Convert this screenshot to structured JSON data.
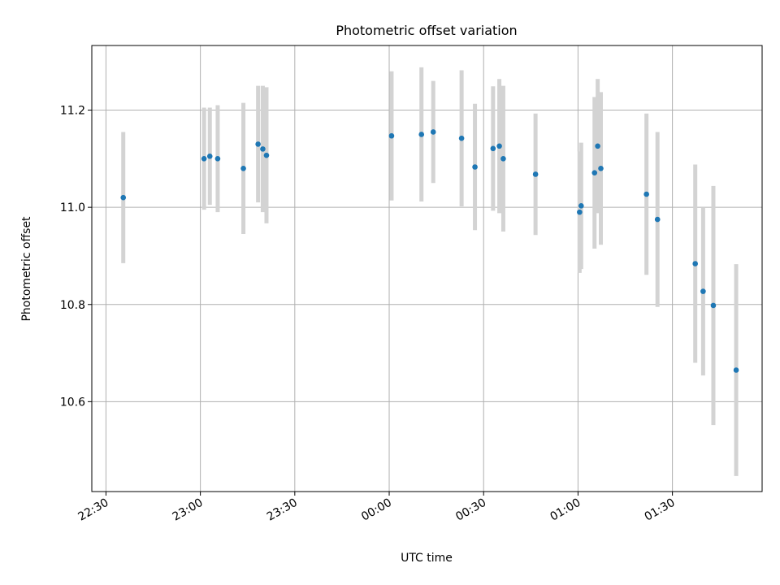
{
  "chart_data": {
    "type": "scatter",
    "title": "Photometric offset variation",
    "xlabel": "UTC time",
    "ylabel": "Photometric offset",
    "x_axis": "time (HH:MM, UTC)",
    "xlim": [
      "22:25:30",
      "01:58:30"
    ],
    "ylim": [
      10.415,
      11.333
    ],
    "x_ticks": [
      "22:30",
      "23:00",
      "23:30",
      "00:00",
      "00:30",
      "01:00",
      "01:30"
    ],
    "y_ticks": [
      10.6,
      10.8,
      11.0,
      11.2
    ],
    "y_tick_labels": [
      "10.6",
      "10.8",
      "11.0",
      "11.2"
    ],
    "grid": true,
    "legend": "none",
    "colors": {
      "point": "#1f77b4",
      "errorbar": "#d3d3d3",
      "grid": "#b0b0b0"
    },
    "series": [
      {
        "points": [
          {
            "t": "22:35:30",
            "y": 11.02,
            "yerr": 0.135
          },
          {
            "t": "23:01:10",
            "y": 11.1,
            "yerr": 0.105
          },
          {
            "t": "23:03:00",
            "y": 11.105,
            "yerr": 0.1
          },
          {
            "t": "23:05:30",
            "y": 11.1,
            "yerr": 0.11
          },
          {
            "t": "23:13:40",
            "y": 11.08,
            "yerr": 0.135
          },
          {
            "t": "23:18:20",
            "y": 11.13,
            "yerr": 0.12
          },
          {
            "t": "23:19:50",
            "y": 11.12,
            "yerr": 0.13
          },
          {
            "t": "23:21:00",
            "y": 11.107,
            "yerr": 0.14
          },
          {
            "t": "00:00:45",
            "y": 11.147,
            "yerr": 0.133
          },
          {
            "t": "00:10:15",
            "y": 11.15,
            "yerr": 0.138
          },
          {
            "t": "00:14:00",
            "y": 11.155,
            "yerr": 0.105
          },
          {
            "t": "00:23:00",
            "y": 11.142,
            "yerr": 0.14
          },
          {
            "t": "00:27:15",
            "y": 11.083,
            "yerr": 0.13
          },
          {
            "t": "00:33:00",
            "y": 11.121,
            "yerr": 0.128
          },
          {
            "t": "00:35:00",
            "y": 11.126,
            "yerr": 0.138
          },
          {
            "t": "00:36:15",
            "y": 11.1,
            "yerr": 0.15
          },
          {
            "t": "00:46:30",
            "y": 11.068,
            "yerr": 0.125
          },
          {
            "t": "01:00:30",
            "y": 10.99,
            "yerr": 0.125
          },
          {
            "t": "01:01:00",
            "y": 11.003,
            "yerr": 0.13
          },
          {
            "t": "01:05:15",
            "y": 11.071,
            "yerr": 0.156
          },
          {
            "t": "01:06:15",
            "y": 11.126,
            "yerr": 0.138
          },
          {
            "t": "01:07:15",
            "y": 11.08,
            "yerr": 0.157
          },
          {
            "t": "01:21:45",
            "y": 11.027,
            "yerr": 0.166
          },
          {
            "t": "01:25:15",
            "y": 10.975,
            "yerr": 0.18
          },
          {
            "t": "01:37:15",
            "y": 10.884,
            "yerr": 0.204
          },
          {
            "t": "01:39:45",
            "y": 10.827,
            "yerr": 0.173
          },
          {
            "t": "01:43:00",
            "y": 10.798,
            "yerr": 0.246
          },
          {
            "t": "01:50:15",
            "y": 10.665,
            "yerr": 0.218
          }
        ]
      }
    ]
  }
}
